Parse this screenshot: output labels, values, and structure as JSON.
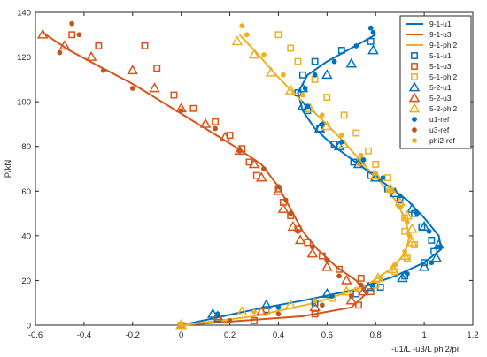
{
  "chart_data": {
    "type": "scatter",
    "xlabel": "-u1/L  -u3/L  phi2/pi",
    "ylabel": "P/kN",
    "xlim": [
      -0.6,
      1.2
    ],
    "ylim": [
      0,
      140
    ],
    "x_ticks": [
      "-0.6",
      "-0.4",
      "-0.2",
      "0",
      "0.2",
      "0.4",
      "0.6",
      "0.8",
      "1",
      "1.2"
    ],
    "y_ticks": [
      "0",
      "20",
      "40",
      "60",
      "80",
      "100",
      "120",
      "140"
    ],
    "legend_position": "top-right",
    "colors": {
      "u1": "#0072BD",
      "u3": "#D95319",
      "phi2": "#EDB120",
      "u3_ref": "#C0561E"
    },
    "series": [
      {
        "name": "9-1-u1",
        "family": "u1",
        "style": "line",
        "points": [
          [
            0,
            0
          ],
          [
            0.13,
            3
          ],
          [
            0.3,
            7
          ],
          [
            0.5,
            11
          ],
          [
            0.72,
            16
          ],
          [
            0.88,
            22
          ],
          [
            1.0,
            28
          ],
          [
            1.07,
            34
          ],
          [
            1.06,
            40
          ],
          [
            1.0,
            48
          ],
          [
            0.93,
            56
          ],
          [
            0.83,
            64
          ],
          [
            0.73,
            72
          ],
          [
            0.63,
            80
          ],
          [
            0.55,
            88
          ],
          [
            0.5,
            96
          ],
          [
            0.48,
            104
          ],
          [
            0.52,
            112
          ],
          [
            0.6,
            118
          ],
          [
            0.7,
            124
          ],
          [
            0.8,
            130
          ]
        ]
      },
      {
        "name": "9-1-u3",
        "family": "u3",
        "style": "line",
        "points": [
          [
            0,
            0
          ],
          [
            0.25,
            2
          ],
          [
            0.5,
            4
          ],
          [
            0.7,
            8
          ],
          [
            0.76,
            14
          ],
          [
            0.72,
            20
          ],
          [
            0.64,
            26
          ],
          [
            0.56,
            34
          ],
          [
            0.5,
            42
          ],
          [
            0.45,
            52
          ],
          [
            0.4,
            62
          ],
          [
            0.33,
            72
          ],
          [
            0.22,
            80
          ],
          [
            0.1,
            88
          ],
          [
            -0.05,
            98
          ],
          [
            -0.2,
            108
          ],
          [
            -0.34,
            116
          ],
          [
            -0.46,
            123
          ],
          [
            -0.53,
            128
          ],
          [
            -0.57,
            131
          ]
        ]
      },
      {
        "name": "9-1-phi2",
        "family": "phi2",
        "style": "line",
        "points": [
          [
            0,
            0
          ],
          [
            0.3,
            4
          ],
          [
            0.55,
            10
          ],
          [
            0.75,
            17
          ],
          [
            0.86,
            25
          ],
          [
            0.92,
            32
          ],
          [
            0.94,
            40
          ],
          [
            0.92,
            48
          ],
          [
            0.88,
            56
          ],
          [
            0.82,
            64
          ],
          [
            0.75,
            72
          ],
          [
            0.67,
            82
          ],
          [
            0.58,
            92
          ],
          [
            0.48,
            102
          ],
          [
            0.39,
            112
          ],
          [
            0.31,
            122
          ],
          [
            0.24,
            130
          ]
        ]
      },
      {
        "name": "5-1-u1",
        "family": "u1",
        "style": "square",
        "points": [
          [
            0,
            0
          ],
          [
            0.15,
            3
          ],
          [
            0.35,
            7
          ],
          [
            0.55,
            10
          ],
          [
            0.72,
            14
          ],
          [
            0.82,
            17
          ],
          [
            0.92,
            22
          ],
          [
            1.0,
            28
          ],
          [
            1.04,
            33
          ],
          [
            1.03,
            38
          ],
          [
            0.99,
            44
          ],
          [
            0.96,
            50
          ],
          [
            0.9,
            56
          ],
          [
            0.85,
            61
          ],
          [
            0.78,
            67
          ],
          [
            0.71,
            73
          ],
          [
            0.63,
            81
          ],
          [
            0.57,
            88
          ],
          [
            0.52,
            96
          ],
          [
            0.48,
            104
          ],
          [
            0.5,
            112
          ],
          [
            0.55,
            118
          ],
          [
            0.66,
            123
          ],
          [
            0.78,
            127
          ]
        ]
      },
      {
        "name": "5-1-u3",
        "family": "u3",
        "style": "square",
        "points": [
          [
            0,
            0
          ],
          [
            0.3,
            2
          ],
          [
            0.55,
            5
          ],
          [
            0.73,
            9
          ],
          [
            0.78,
            15
          ],
          [
            0.74,
            21
          ],
          [
            0.65,
            25
          ],
          [
            0.58,
            31
          ],
          [
            0.52,
            37
          ],
          [
            0.48,
            43
          ],
          [
            0.45,
            49
          ],
          [
            0.42,
            55
          ],
          [
            0.4,
            61
          ],
          [
            0.31,
            67
          ],
          [
            0.28,
            73
          ],
          [
            0.25,
            79
          ],
          [
            0.2,
            85
          ],
          [
            0.14,
            91
          ],
          [
            0.05,
            97
          ],
          [
            -0.03,
            103
          ],
          [
            -0.1,
            115
          ],
          [
            -0.15,
            125
          ],
          [
            -0.34,
            125
          ],
          [
            -0.45,
            130
          ]
        ]
      },
      {
        "name": "5-1-phi2",
        "family": "phi2",
        "style": "square",
        "points": [
          [
            0,
            0
          ],
          [
            0.35,
            6
          ],
          [
            0.62,
            12
          ],
          [
            0.8,
            18
          ],
          [
            0.88,
            24
          ],
          [
            0.93,
            30
          ],
          [
            0.96,
            36
          ],
          [
            0.92,
            42
          ],
          [
            0.92,
            48
          ],
          [
            0.9,
            54
          ],
          [
            0.87,
            60
          ],
          [
            0.85,
            66
          ],
          [
            0.8,
            72
          ],
          [
            0.77,
            78
          ],
          [
            0.72,
            86
          ],
          [
            0.67,
            94
          ],
          [
            0.6,
            102
          ],
          [
            0.55,
            110
          ],
          [
            0.48,
            118
          ],
          [
            0.45,
            124
          ],
          [
            0.4,
            130
          ]
        ]
      },
      {
        "name": "5-2-u1",
        "family": "u1",
        "style": "triangle",
        "points": [
          [
            0,
            0
          ],
          [
            0.13,
            5
          ],
          [
            0.35,
            9
          ],
          [
            0.6,
            14
          ],
          [
            0.77,
            17
          ],
          [
            0.91,
            21
          ],
          [
            1.0,
            26
          ],
          [
            1.05,
            30
          ],
          [
            1.06,
            36
          ],
          [
            1.0,
            44
          ],
          [
            0.95,
            52
          ],
          [
            0.88,
            59
          ],
          [
            0.8,
            66
          ],
          [
            0.73,
            72
          ],
          [
            0.65,
            80
          ],
          [
            0.57,
            88
          ],
          [
            0.5,
            98
          ],
          [
            0.5,
            106
          ],
          [
            0.6,
            112
          ],
          [
            0.7,
            117
          ],
          [
            0.79,
            123
          ]
        ]
      },
      {
        "name": "5-2-u3",
        "family": "u3",
        "style": "triangle",
        "points": [
          [
            0,
            0
          ],
          [
            0.15,
            4
          ],
          [
            0.33,
            6
          ],
          [
            0.55,
            8
          ],
          [
            0.7,
            11
          ],
          [
            0.75,
            15
          ],
          [
            0.68,
            20
          ],
          [
            0.6,
            26
          ],
          [
            0.54,
            32
          ],
          [
            0.49,
            38
          ],
          [
            0.46,
            44
          ],
          [
            0.42,
            52
          ],
          [
            0.4,
            60
          ],
          [
            0.33,
            66
          ],
          [
            0.3,
            72
          ],
          [
            0.24,
            78
          ],
          [
            0.18,
            84
          ],
          [
            0.1,
            90
          ],
          [
            0.0,
            97
          ],
          [
            -0.11,
            106
          ],
          [
            -0.2,
            114
          ],
          [
            -0.37,
            120
          ],
          [
            -0.48,
            125
          ],
          [
            -0.57,
            130
          ]
        ]
      },
      {
        "name": "5-2-phi2",
        "family": "phi2",
        "style": "triangle",
        "points": [
          [
            0,
            0
          ],
          [
            0.25,
            6
          ],
          [
            0.45,
            9
          ],
          [
            0.68,
            15
          ],
          [
            0.81,
            21
          ],
          [
            0.87,
            25
          ],
          [
            0.92,
            31
          ],
          [
            0.95,
            37
          ],
          [
            0.95,
            43
          ],
          [
            0.93,
            49
          ],
          [
            0.9,
            55
          ],
          [
            0.86,
            61
          ],
          [
            0.8,
            67
          ],
          [
            0.74,
            73
          ],
          [
            0.67,
            81
          ],
          [
            0.6,
            89
          ],
          [
            0.53,
            97
          ],
          [
            0.45,
            105
          ],
          [
            0.37,
            113
          ],
          [
            0.3,
            121
          ],
          [
            0.23,
            127
          ]
        ]
      },
      {
        "name": "u1-ref",
        "family": "u1",
        "style": "dot",
        "points": [
          [
            0,
            0
          ],
          [
            0.15,
            5
          ],
          [
            0.4,
            8
          ],
          [
            0.62,
            13
          ],
          [
            0.79,
            18
          ],
          [
            0.93,
            23
          ],
          [
            1.03,
            28
          ],
          [
            1.06,
            35
          ],
          [
            1.02,
            42
          ],
          [
            0.97,
            50
          ],
          [
            0.9,
            58
          ],
          [
            0.83,
            66
          ],
          [
            0.75,
            74
          ],
          [
            0.66,
            82
          ],
          [
            0.58,
            90
          ],
          [
            0.52,
            98
          ],
          [
            0.51,
            106
          ],
          [
            0.55,
            112
          ],
          [
            0.63,
            118
          ],
          [
            0.72,
            125
          ],
          [
            0.79,
            131
          ],
          [
            0.78,
            133
          ]
        ]
      },
      {
        "name": "u3-ref",
        "family": "u3_ref",
        "style": "dot",
        "points": [
          [
            0,
            0
          ],
          [
            0.2,
            2
          ],
          [
            0.4,
            5
          ],
          [
            0.58,
            9
          ],
          [
            0.7,
            13
          ],
          [
            0.74,
            18
          ],
          [
            0.65,
            22
          ],
          [
            0.6,
            29
          ],
          [
            0.54,
            35
          ],
          [
            0.48,
            42
          ],
          [
            0.45,
            50
          ],
          [
            0.43,
            56
          ],
          [
            0.4,
            62
          ],
          [
            0.34,
            70
          ],
          [
            0.24,
            78
          ],
          [
            0.14,
            88
          ],
          [
            0.0,
            96
          ],
          [
            -0.2,
            106
          ],
          [
            -0.32,
            114
          ],
          [
            -0.5,
            122
          ],
          [
            -0.42,
            130
          ],
          [
            -0.45,
            135
          ]
        ]
      },
      {
        "name": "phi2-ref",
        "family": "phi2",
        "style": "dot",
        "points": [
          [
            0,
            0
          ],
          [
            0.3,
            6
          ],
          [
            0.55,
            11
          ],
          [
            0.72,
            16
          ],
          [
            0.82,
            21
          ],
          [
            0.88,
            27
          ],
          [
            0.92,
            33
          ],
          [
            0.94,
            40
          ],
          [
            0.93,
            46
          ],
          [
            0.9,
            53
          ],
          [
            0.86,
            60
          ],
          [
            0.8,
            68
          ],
          [
            0.74,
            76
          ],
          [
            0.66,
            85
          ],
          [
            0.58,
            94
          ],
          [
            0.5,
            103
          ],
          [
            0.42,
            112
          ],
          [
            0.34,
            121
          ],
          [
            0.27,
            130
          ],
          [
            0.25,
            134
          ]
        ]
      }
    ]
  }
}
